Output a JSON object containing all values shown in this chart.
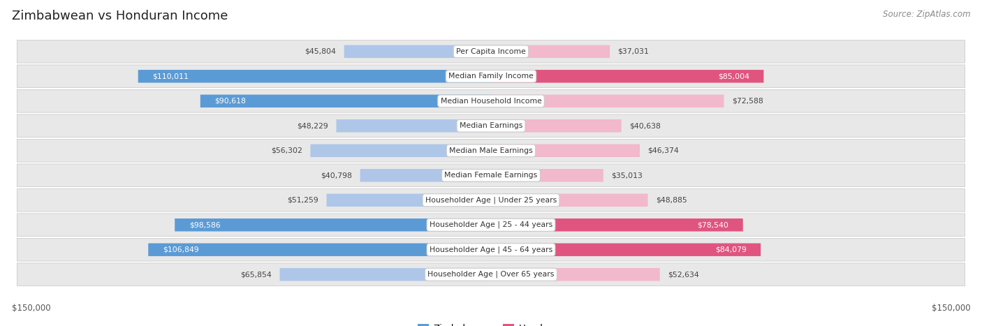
{
  "title": "Zimbabwean vs Honduran Income",
  "source": "Source: ZipAtlas.com",
  "categories": [
    "Per Capita Income",
    "Median Family Income",
    "Median Household Income",
    "Median Earnings",
    "Median Male Earnings",
    "Median Female Earnings",
    "Householder Age | Under 25 years",
    "Householder Age | 25 - 44 years",
    "Householder Age | 45 - 64 years",
    "Householder Age | Over 65 years"
  ],
  "zimbabwean_values": [
    45804,
    110011,
    90618,
    48229,
    56302,
    40798,
    51259,
    98586,
    106849,
    65854
  ],
  "honduran_values": [
    37031,
    85004,
    72588,
    40638,
    46374,
    35013,
    48885,
    78540,
    84079,
    52634
  ],
  "zimbabwean_labels": [
    "$45,804",
    "$110,011",
    "$90,618",
    "$48,229",
    "$56,302",
    "$40,798",
    "$51,259",
    "$98,586",
    "$106,849",
    "$65,854"
  ],
  "honduran_labels": [
    "$37,031",
    "$85,004",
    "$72,588",
    "$40,638",
    "$46,374",
    "$35,013",
    "$48,885",
    "$78,540",
    "$84,079",
    "$52,634"
  ],
  "zimbabwean_color_light": "#aec6e8",
  "zimbabwean_color_dark": "#5b9bd5",
  "honduran_color_light": "#f2b8cc",
  "honduran_color_dark": "#e05580",
  "max_value": 150000,
  "xlabel_left": "$150,000",
  "xlabel_right": "$150,000",
  "row_bg_color": "#e8e8e8",
  "background_color": "#ffffff",
  "threshold_dark_label": 75000,
  "legend_zim_color": "#5b9bd5",
  "legend_hon_color": "#e05580"
}
